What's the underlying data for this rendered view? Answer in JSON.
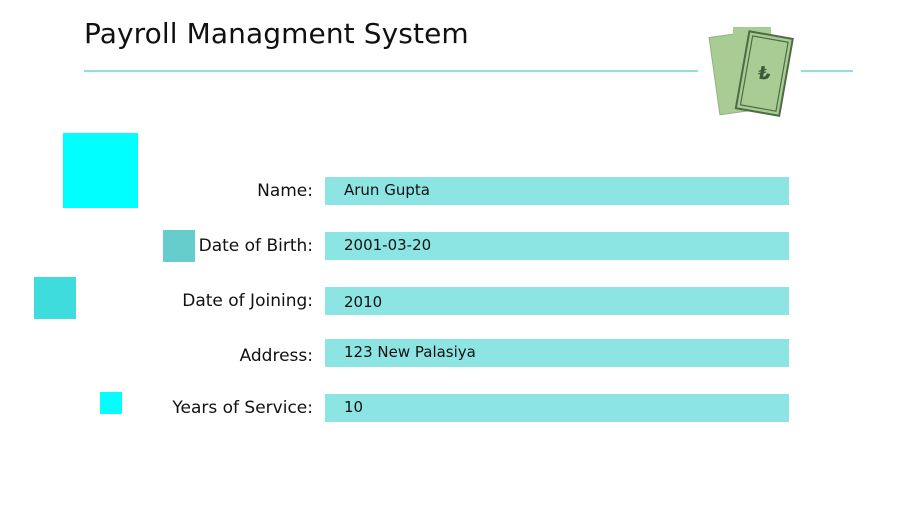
{
  "header": {
    "title": "Payroll Managment System"
  },
  "icons": {
    "money": "money-bills-icon"
  },
  "colors": {
    "field_background": "#8de5e3",
    "rule": "#8fe0dc",
    "accent_cyan": "#00ffff",
    "accent_teal": "#66cccc",
    "money_green": "#a8cc94"
  },
  "form": {
    "name": {
      "label": "Name:",
      "value": "Arun Gupta"
    },
    "dob": {
      "label": "Date of Birth:",
      "value": "2001-03-20"
    },
    "doj": {
      "label": "Date of Joining:",
      "value": "2010"
    },
    "address": {
      "label": "Address:",
      "value": "123 New Palasiya"
    },
    "years": {
      "label": "Years of Service:",
      "value": "10"
    }
  }
}
